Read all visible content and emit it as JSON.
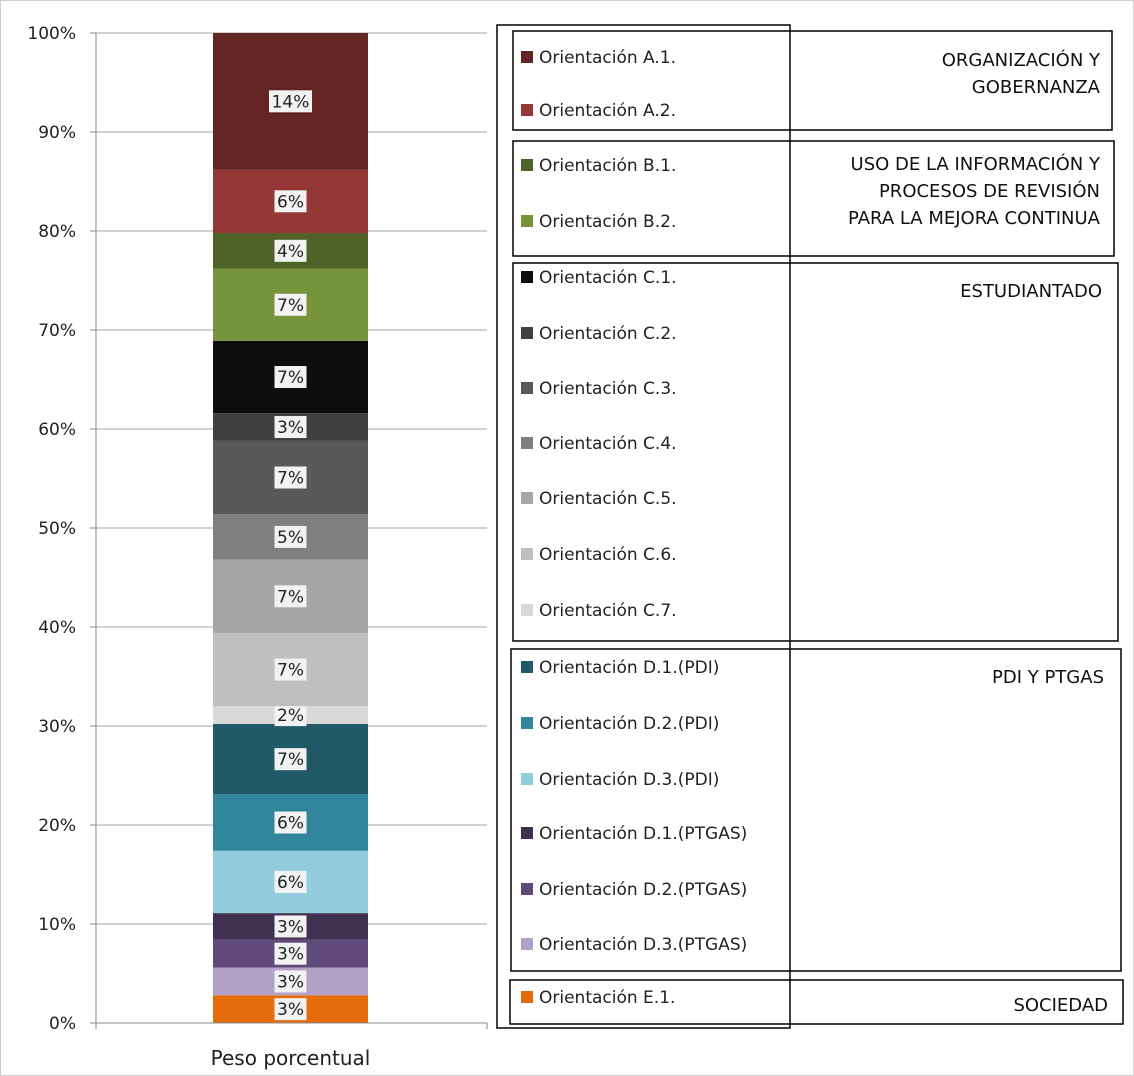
{
  "chart_data": {
    "type": "bar",
    "stacked": "percent",
    "categories": [
      "Peso porcentual"
    ],
    "ylim": [
      0,
      100
    ],
    "yticks": [
      "0%",
      "10%",
      "20%",
      "30%",
      "40%",
      "50%",
      "60%",
      "70%",
      "80%",
      "90%",
      "100%"
    ],
    "grid": true,
    "series": [
      {
        "name": "Orientación E.1.",
        "value": 2.8,
        "label": "3%",
        "color": "#e46c0a",
        "group": 4
      },
      {
        "name": "Orientación D.3.(PTGAS)",
        "value": 2.8,
        "label": "3%",
        "color": "#b3a2c7",
        "group": 3
      },
      {
        "name": "Orientación D.2.(PTGAS)",
        "value": 2.8,
        "label": "3%",
        "color": "#604a7b",
        "group": 3
      },
      {
        "name": "Orientación D.1.(PTGAS)",
        "value": 2.7,
        "label": "3%",
        "color": "#403152",
        "group": 3
      },
      {
        "name": "Orientación D.3.(PDI)",
        "value": 6.3,
        "label": "6%",
        "color": "#93cddd",
        "group": 3
      },
      {
        "name": "Orientación D.2.(PDI)",
        "value": 5.7,
        "label": "6%",
        "color": "#31859c",
        "group": 3
      },
      {
        "name": "Orientación D.1.(PDI)",
        "value": 7.1,
        "label": "7%",
        "color": "#215968",
        "group": 3
      },
      {
        "name": "Orientación C.7.",
        "value": 1.8,
        "label": "2%",
        "color": "#d9d9d9",
        "group": 2
      },
      {
        "name": "Orientación C.6.",
        "value": 7.4,
        "label": "7%",
        "color": "#bfbfbf",
        "group": 2
      },
      {
        "name": "Orientación C.5.",
        "value": 7.4,
        "label": "7%",
        "color": "#a6a6a6",
        "group": 2
      },
      {
        "name": "Orientación C.4.",
        "value": 4.6,
        "label": "5%",
        "color": "#7f7f7f",
        "group": 2
      },
      {
        "name": "Orientación C.3.",
        "value": 7.4,
        "label": "7%",
        "color": "#595959",
        "group": 2
      },
      {
        "name": "Orientación C.2.",
        "value": 2.8,
        "label": "3%",
        "color": "#404040",
        "group": 2
      },
      {
        "name": "Orientación C.1.",
        "value": 7.3,
        "label": "7%",
        "color": "#0d0d0d",
        "group": 2
      },
      {
        "name": "Orientación B.2.",
        "value": 7.3,
        "label": "7%",
        "color": "#77933c",
        "group": 1
      },
      {
        "name": "Orientación B.1.",
        "value": 3.6,
        "label": "4%",
        "color": "#4f6228",
        "group": 1
      },
      {
        "name": "Orientación A.2.",
        "value": 6.4,
        "label": "6%",
        "color": "#953735",
        "group": 0
      },
      {
        "name": "Orientación A.1.",
        "value": 13.8,
        "label": "14%",
        "color": "#632523",
        "group": 0
      }
    ],
    "groups": [
      {
        "title_lines": [
          "ORGANIZACIÓN Y",
          "GOBERNANZA"
        ]
      },
      {
        "title_lines": [
          "USO DE LA INFORMACIÓN Y",
          "PROCESOS DE REVISIÓN",
          "PARA LA MEJORA CONTINUA"
        ]
      },
      {
        "title_lines": [
          "ESTUDIANTADO"
        ]
      },
      {
        "title_lines": [
          "PDI Y PTGAS"
        ]
      },
      {
        "title_lines": [
          "SOCIEDAD"
        ]
      }
    ]
  }
}
